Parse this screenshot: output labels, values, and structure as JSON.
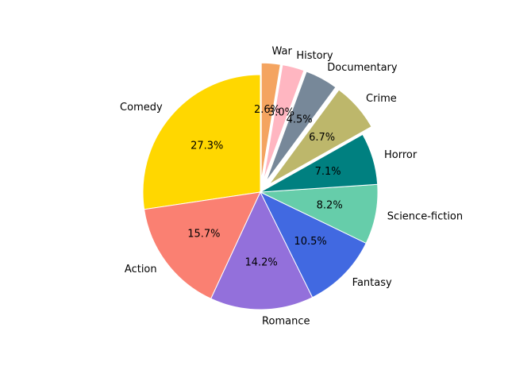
{
  "chart_data": {
    "type": "pie",
    "title": "",
    "slices": [
      {
        "label": "Comedy",
        "value": 27.3,
        "pct_label": "27.3%",
        "color": "#ffd700",
        "exploded": false
      },
      {
        "label": "Action",
        "value": 15.7,
        "pct_label": "15.7%",
        "color": "#fa8072",
        "exploded": false
      },
      {
        "label": "Romance",
        "value": 14.2,
        "pct_label": "14.2%",
        "color": "#9370db",
        "exploded": false
      },
      {
        "label": "Fantasy",
        "value": 10.5,
        "pct_label": "10.5%",
        "color": "#4169e1",
        "exploded": false
      },
      {
        "label": "Science-fiction",
        "value": 8.2,
        "pct_label": "8.2%",
        "color": "#66cdaa",
        "exploded": false
      },
      {
        "label": "Horror",
        "value": 7.1,
        "pct_label": "7.1%",
        "color": "#008080",
        "exploded": false
      },
      {
        "label": "Crime",
        "value": 6.7,
        "pct_label": "6.7%",
        "color": "#bdb76b",
        "exploded": true
      },
      {
        "label": "Documentary",
        "value": 4.5,
        "pct_label": "4.5%",
        "color": "#778899",
        "exploded": true
      },
      {
        "label": "History",
        "value": 3.0,
        "pct_label": "3.0%",
        "color": "#ffb6c1",
        "exploded": true
      },
      {
        "label": "War",
        "value": 2.6,
        "pct_label": "2.6%",
        "color": "#f4a460",
        "exploded": true
      }
    ]
  }
}
